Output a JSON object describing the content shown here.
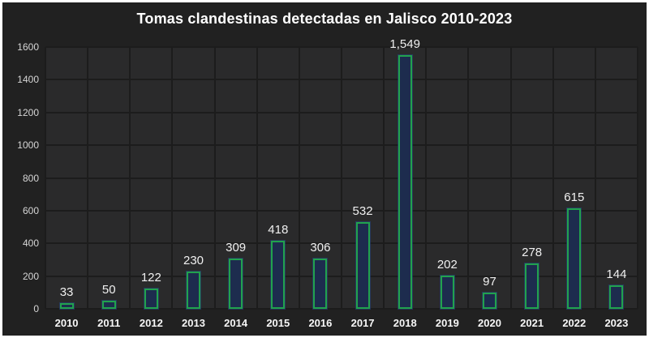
{
  "chart_data": {
    "type": "bar",
    "title": "Tomas clandestinas detectadas en Jalisco 2010-2023",
    "categories": [
      "2010",
      "2011",
      "2012",
      "2013",
      "2014",
      "2015",
      "2016",
      "2017",
      "2018",
      "2019",
      "2020",
      "2021",
      "2022",
      "2023"
    ],
    "values": [
      33,
      50,
      122,
      230,
      309,
      418,
      306,
      532,
      1549,
      202,
      97,
      278,
      615,
      144
    ],
    "value_labels": [
      "33",
      "50",
      "122",
      "230",
      "309",
      "418",
      "306",
      "532",
      "1,549",
      "202",
      "97",
      "278",
      "615",
      "144"
    ],
    "xlabel": "",
    "ylabel": "",
    "ylim": [
      0,
      1600
    ],
    "yticks": [
      0,
      200,
      400,
      600,
      800,
      1000,
      1200,
      1400,
      1600
    ],
    "ytick_labels": [
      "0",
      "200",
      "400",
      "600",
      "800",
      "1000",
      "1200",
      "1400",
      "1600"
    ],
    "grid": "both (major horizontal every 200, vertical at category boundaries)",
    "legend": "none"
  },
  "colors": {
    "frame_border": "#ffffff",
    "background": "#212121",
    "plot_background": "#2a2a2b",
    "gridline": "#1c1c1c",
    "bar_fill": "#1d2c4e",
    "bar_border": "#21a24d",
    "title_text": "#ffffff",
    "axis_text": "#d6d6d6",
    "value_label_text": "#f0f0f0"
  }
}
